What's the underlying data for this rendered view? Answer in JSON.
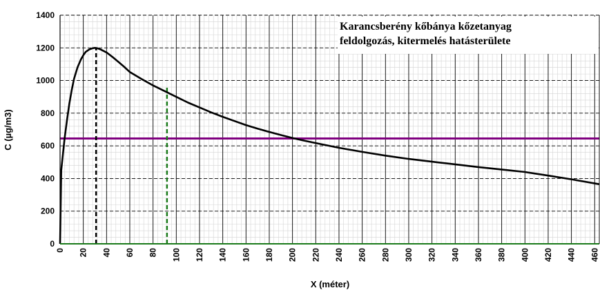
{
  "chart_data": {
    "type": "line",
    "title": [
      "Karancsberény kőbánya kőzetanyag",
      "feldolgozás, kitermelés hatásterülete"
    ],
    "xlabel": "X (méter)",
    "ylabel": "C (µg/m3)",
    "xlim": [
      0,
      464
    ],
    "ylim": [
      0,
      1400
    ],
    "x_ticks": [
      0,
      20,
      40,
      60,
      80,
      100,
      120,
      140,
      160,
      180,
      200,
      220,
      240,
      260,
      280,
      300,
      320,
      340,
      360,
      380,
      400,
      420,
      440,
      460
    ],
    "y_ticks": [
      0,
      200,
      400,
      600,
      800,
      1000,
      1200,
      1400
    ],
    "grid": true,
    "series": [
      {
        "color": "#000000",
        "x": [
          0,
          1,
          2,
          4,
          6,
          8,
          10,
          12,
          15,
          18,
          20,
          22,
          25,
          28,
          30,
          32,
          35,
          40,
          45,
          50,
          55,
          60,
          70,
          80,
          90,
          100,
          110,
          120,
          130,
          140,
          150,
          160,
          170,
          180,
          190,
          200,
          210,
          220,
          240,
          260,
          280,
          300,
          320,
          340,
          360,
          380,
          400,
          420,
          440,
          464
        ],
        "y": [
          0,
          450,
          520,
          650,
          760,
          860,
          940,
          1010,
          1080,
          1130,
          1155,
          1175,
          1190,
          1198,
          1200,
          1198,
          1190,
          1172,
          1145,
          1115,
          1085,
          1052,
          1010,
          970,
          935,
          900,
          865,
          835,
          805,
          778,
          752,
          727,
          705,
          685,
          666,
          648,
          632,
          617,
          588,
          563,
          540,
          520,
          503,
          487,
          470,
          455,
          440,
          418,
          395,
          365
        ]
      }
    ],
    "reference_lines": [
      {
        "orientation": "horizontal",
        "value": 645,
        "color": "#800080"
      },
      {
        "orientation": "vertical",
        "value": 31,
        "from": 0,
        "to": 1200,
        "color": "#000000",
        "dash": true
      },
      {
        "orientation": "vertical",
        "value": 92,
        "from": 0,
        "to": 960,
        "color": "#1a7a1a",
        "dash": true
      }
    ]
  }
}
